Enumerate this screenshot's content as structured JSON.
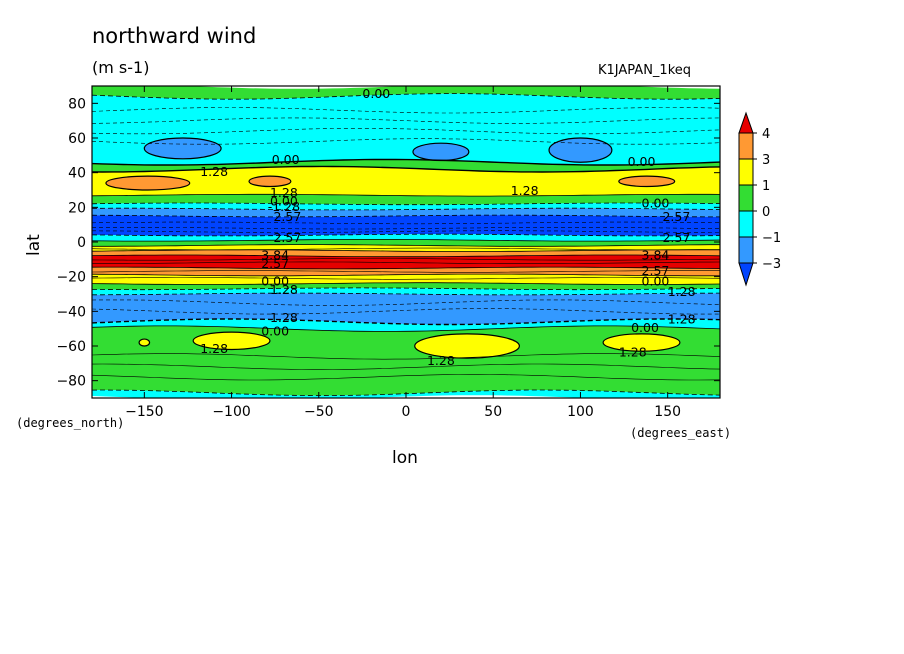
{
  "chart_data": {
    "type": "heatmap",
    "title": "northward wind",
    "units": "(m s-1)",
    "dataset": "K1JAPAN_1keq",
    "xlabel": "lon",
    "xunits": "(degrees_east)",
    "ylabel": "lat",
    "yunits": "(degrees_north)",
    "xlim": [
      -180,
      180
    ],
    "ylim": [
      -90,
      90
    ],
    "xticks": [
      -150,
      -100,
      -50,
      0,
      50,
      100,
      150
    ],
    "yticks": [
      80,
      60,
      40,
      20,
      0,
      -20,
      -40,
      -60,
      -80
    ],
    "colorbar": {
      "labels": [
        "4",
        "3",
        "1",
        "0",
        "−1",
        "−3"
      ],
      "levels": [
        4,
        3,
        1,
        0,
        -1,
        -3
      ],
      "colors": [
        "#e60000",
        "#ff9933",
        "#ffff00",
        "#33dd33",
        "#00ffff",
        "#3399ff",
        "#0044ff"
      ]
    },
    "bands": [
      {
        "lat_top": 90,
        "lat_bottom": 84,
        "color": "#33dd33"
      },
      {
        "lat_top": 84,
        "lat_bottom": 46,
        "color": "#00ffff"
      },
      {
        "lat_top": 46,
        "lat_bottom": 42,
        "color": "#33dd33"
      },
      {
        "lat_top": 42,
        "lat_bottom": 27,
        "color": "#ffff00"
      },
      {
        "lat_top": 27,
        "lat_bottom": 22,
        "color": "#33dd33"
      },
      {
        "lat_top": 22,
        "lat_bottom": 19,
        "color": "#00ffff"
      },
      {
        "lat_top": 19,
        "lat_bottom": 15,
        "color": "#3399ff"
      },
      {
        "lat_top": 15,
        "lat_bottom": 4,
        "color": "#0044ff"
      },
      {
        "lat_top": 4,
        "lat_bottom": 1,
        "color": "#00ffff"
      },
      {
        "lat_top": 1,
        "lat_bottom": -2,
        "color": "#33dd33"
      },
      {
        "lat_top": -2,
        "lat_bottom": -5,
        "color": "#ffff00"
      },
      {
        "lat_top": -5,
        "lat_bottom": -8,
        "color": "#ff9933"
      },
      {
        "lat_top": -8,
        "lat_bottom": -15,
        "color": "#e60000"
      },
      {
        "lat_top": -15,
        "lat_bottom": -19,
        "color": "#ff9933"
      },
      {
        "lat_top": -19,
        "lat_bottom": -24,
        "color": "#ffff00"
      },
      {
        "lat_top": -24,
        "lat_bottom": -27,
        "color": "#33dd33"
      },
      {
        "lat_top": -27,
        "lat_bottom": -30,
        "color": "#00ffff"
      },
      {
        "lat_top": -30,
        "lat_bottom": -46,
        "color": "#3399ff"
      },
      {
        "lat_top": -46,
        "lat_bottom": -50,
        "color": "#00ffff"
      },
      {
        "lat_top": -50,
        "lat_bottom": -87,
        "color": "#33dd33"
      },
      {
        "lat_top": -87,
        "lat_bottom": -90,
        "color": "#00ffff"
      }
    ],
    "blobs": [
      {
        "lon": -128,
        "lat": 54,
        "rlon": 22,
        "rlat": 6,
        "color": "#3399ff"
      },
      {
        "lon": 20,
        "lat": 52,
        "rlon": 16,
        "rlat": 5,
        "color": "#3399ff"
      },
      {
        "lon": 100,
        "lat": 53,
        "rlon": 18,
        "rlat": 7,
        "color": "#3399ff"
      },
      {
        "lon": -148,
        "lat": 34,
        "rlon": 24,
        "rlat": 4,
        "color": "#ff9933"
      },
      {
        "lon": -78,
        "lat": 35,
        "rlon": 12,
        "rlat": 3,
        "color": "#ff9933"
      },
      {
        "lon": 138,
        "lat": 35,
        "rlon": 16,
        "rlat": 3,
        "color": "#ff9933"
      },
      {
        "lon": -100,
        "lat": -57,
        "rlon": 22,
        "rlat": 5,
        "color": "#ffff00"
      },
      {
        "lon": 35,
        "lat": -60,
        "rlon": 30,
        "rlat": 7,
        "color": "#ffff00"
      },
      {
        "lon": 135,
        "lat": -58,
        "rlon": 22,
        "rlat": 5,
        "color": "#ffff00"
      },
      {
        "lon": -150,
        "lat": -58,
        "rlon": 3,
        "rlat": 2,
        "color": "#ffff00"
      }
    ],
    "contour_labels": [
      {
        "text": "0.00",
        "lon": -17,
        "lat": 85
      },
      {
        "text": "0.00",
        "lon": -69,
        "lat": 47
      },
      {
        "text": "0.00",
        "lon": 135,
        "lat": 46
      },
      {
        "text": "1.28",
        "lon": -110,
        "lat": 40
      },
      {
        "text": "1.28",
        "lon": -70,
        "lat": 28
      },
      {
        "text": "1.28",
        "lon": 68,
        "lat": 29
      },
      {
        "text": "0.00",
        "lon": -70,
        "lat": 23
      },
      {
        "text": "-1.28",
        "lon": -70,
        "lat": 20
      },
      {
        "text": "2.57",
        "lon": -68,
        "lat": 14
      },
      {
        "text": "0.00",
        "lon": 143,
        "lat": 22
      },
      {
        "text": "2.57",
        "lon": 155,
        "lat": 14
      },
      {
        "text": "2.57",
        "lon": -68,
        "lat": 2
      },
      {
        "text": "2.57",
        "lon": 155,
        "lat": 2
      },
      {
        "text": "3.84",
        "lon": -75,
        "lat": -8
      },
      {
        "text": "2.57",
        "lon": -75,
        "lat": -13
      },
      {
        "text": "3.84",
        "lon": 143,
        "lat": -8
      },
      {
        "text": "2.57",
        "lon": 143,
        "lat": -17
      },
      {
        "text": "0.00",
        "lon": -75,
        "lat": -23
      },
      {
        "text": "1.28",
        "lon": -70,
        "lat": -28
      },
      {
        "text": "0.00",
        "lon": 143,
        "lat": -23
      },
      {
        "text": "1.28",
        "lon": 158,
        "lat": -29
      },
      {
        "text": "1.28",
        "lon": -70,
        "lat": -44
      },
      {
        "text": "0.00",
        "lon": -75,
        "lat": -52
      },
      {
        "text": "0.00",
        "lon": 137,
        "lat": -50
      },
      {
        "text": "1.28",
        "lon": 158,
        "lat": -45
      },
      {
        "text": "1.28",
        "lon": -110,
        "lat": -62
      },
      {
        "text": "1.28",
        "lon": 20,
        "lat": -69
      },
      {
        "text": "1.28",
        "lon": 130,
        "lat": -64
      }
    ]
  }
}
